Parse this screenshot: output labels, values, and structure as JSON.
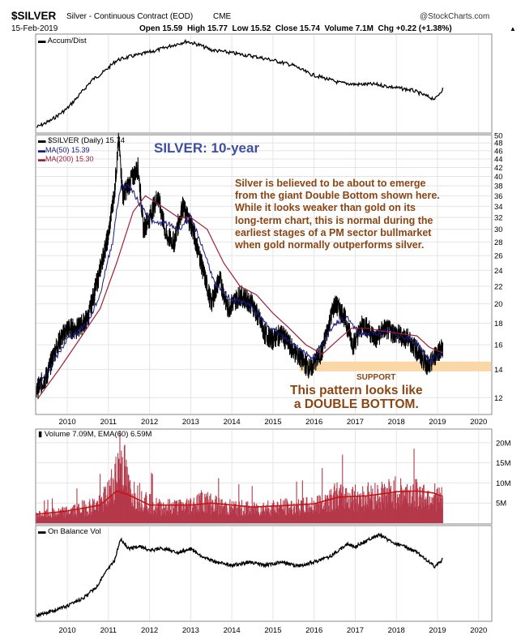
{
  "header": {
    "symbol": "$SILVER",
    "description": "Silver - Continuous Contract (EOD)",
    "exchange": "CME",
    "watermark": "@StockCharts.com",
    "date": "15-Feb-2019",
    "open_label": "Open",
    "open_value": "15.59",
    "high_label": "High",
    "high_value": "15.77",
    "low_label": "Low",
    "low_value": "15.52",
    "close_label": "Close",
    "close_value": "15.74",
    "volume_label": "Volume",
    "volume_value": "7.1M",
    "chg_label": "Chg",
    "chg_value": "+0.22 (+1.38%)"
  },
  "colors": {
    "price": "#000000",
    "ma50": "#1a1a80",
    "ma200": "#a0203a",
    "volume_bar": "#b5394a",
    "volume_ema": "#cc1111",
    "title_blue": "#3f4fa0",
    "annotation_brown": "#8b4513",
    "support_band": "#fbd7a5"
  },
  "chart_data": [
    {
      "type": "line",
      "panel": "accum-dist",
      "legend": [
        "Accum/Dist"
      ],
      "x_range": [
        2009.25,
        2019.13
      ],
      "series": [
        {
          "name": "Accum/Dist",
          "points": [
            [
              2009.25,
              0.0
            ],
            [
              2009.6,
              0.08
            ],
            [
              2010.0,
              0.22
            ],
            [
              2010.3,
              0.38
            ],
            [
              2010.6,
              0.55
            ],
            [
              2010.9,
              0.65
            ],
            [
              2011.2,
              0.78
            ],
            [
              2011.5,
              0.82
            ],
            [
              2011.8,
              0.85
            ],
            [
              2012.2,
              0.9
            ],
            [
              2012.6,
              0.96
            ],
            [
              2012.9,
              1.0
            ],
            [
              2013.2,
              0.96
            ],
            [
              2013.5,
              0.9
            ],
            [
              2013.8,
              0.88
            ],
            [
              2014.2,
              0.85
            ],
            [
              2014.6,
              0.82
            ],
            [
              2015.0,
              0.78
            ],
            [
              2015.5,
              0.72
            ],
            [
              2015.9,
              0.62
            ],
            [
              2016.2,
              0.58
            ],
            [
              2016.6,
              0.52
            ],
            [
              2017.0,
              0.5
            ],
            [
              2017.5,
              0.5
            ],
            [
              2018.0,
              0.46
            ],
            [
              2018.4,
              0.43
            ],
            [
              2018.8,
              0.35
            ],
            [
              2018.95,
              0.33
            ],
            [
              2019.13,
              0.45
            ]
          ]
        }
      ]
    },
    {
      "type": "line",
      "panel": "price",
      "title": "SILVER: 10-year",
      "legend": [
        "$SILVER (Daily) 15.74",
        "MA(50) 15.39",
        "MA(200) 15.30"
      ],
      "x_ticks": [
        "2010",
        "2011",
        "2012",
        "2013",
        "2014",
        "2015",
        "2016",
        "2017",
        "2018",
        "2019",
        "2020"
      ],
      "y_ticks": [
        12,
        14,
        16,
        18,
        20,
        22,
        24,
        26,
        28,
        30,
        32,
        34,
        36,
        38,
        40,
        42,
        44,
        46,
        48,
        50
      ],
      "y_range": [
        11,
        50
      ],
      "scale": "log",
      "series": [
        {
          "name": "$SILVER (Daily)",
          "points": [
            [
              2009.25,
              12.5
            ],
            [
              2009.5,
              13.5
            ],
            [
              2009.75,
              16.0
            ],
            [
              2010.0,
              17.5
            ],
            [
              2010.25,
              17.5
            ],
            [
              2010.5,
              18.5
            ],
            [
              2010.75,
              23.0
            ],
            [
              2011.0,
              29.0
            ],
            [
              2011.15,
              37.0
            ],
            [
              2011.25,
              48.5
            ],
            [
              2011.35,
              36.0
            ],
            [
              2011.6,
              40.0
            ],
            [
              2011.72,
              42.0
            ],
            [
              2011.85,
              30.0
            ],
            [
              2012.0,
              32.0
            ],
            [
              2012.2,
              36.0
            ],
            [
              2012.4,
              29.0
            ],
            [
              2012.6,
              28.0
            ],
            [
              2012.8,
              34.0
            ],
            [
              2013.0,
              31.0
            ],
            [
              2013.3,
              24.0
            ],
            [
              2013.5,
              20.0
            ],
            [
              2013.7,
              23.0
            ],
            [
              2013.9,
              19.5
            ],
            [
              2014.2,
              21.0
            ],
            [
              2014.5,
              20.0
            ],
            [
              2014.8,
              17.0
            ],
            [
              2015.0,
              16.5
            ],
            [
              2015.2,
              17.0
            ],
            [
              2015.5,
              15.5
            ],
            [
              2015.9,
              14.0
            ],
            [
              2016.2,
              15.5
            ],
            [
              2016.5,
              20.0
            ],
            [
              2016.7,
              19.0
            ],
            [
              2016.95,
              16.0
            ],
            [
              2017.2,
              18.0
            ],
            [
              2017.5,
              16.5
            ],
            [
              2017.7,
              17.5
            ],
            [
              2018.0,
              17.0
            ],
            [
              2018.3,
              16.5
            ],
            [
              2018.6,
              15.0
            ],
            [
              2018.8,
              14.2
            ],
            [
              2019.0,
              15.5
            ],
            [
              2019.13,
              15.74
            ]
          ]
        },
        {
          "name": "MA(50)",
          "points": [
            [
              2009.3,
              12.7
            ],
            [
              2009.75,
              15.0
            ],
            [
              2010.0,
              16.5
            ],
            [
              2010.5,
              18.0
            ],
            [
              2010.8,
              21.0
            ],
            [
              2011.1,
              28.0
            ],
            [
              2011.3,
              38.0
            ],
            [
              2011.5,
              38.0
            ],
            [
              2011.8,
              34.0
            ],
            [
              2012.1,
              31.0
            ],
            [
              2012.4,
              31.0
            ],
            [
              2012.7,
              30.0
            ],
            [
              2013.0,
              32.0
            ],
            [
              2013.3,
              27.0
            ],
            [
              2013.6,
              22.0
            ],
            [
              2014.0,
              20.5
            ],
            [
              2014.4,
              20.0
            ],
            [
              2014.8,
              18.0
            ],
            [
              2015.2,
              16.8
            ],
            [
              2015.6,
              15.8
            ],
            [
              2016.0,
              14.8
            ],
            [
              2016.5,
              18.0
            ],
            [
              2016.8,
              18.5
            ],
            [
              2017.1,
              17.0
            ],
            [
              2017.5,
              17.0
            ],
            [
              2017.8,
              17.2
            ],
            [
              2018.1,
              16.8
            ],
            [
              2018.5,
              16.2
            ],
            [
              2018.8,
              14.6
            ],
            [
              2019.13,
              15.39
            ]
          ]
        },
        {
          "name": "MA(200)",
          "points": [
            [
              2009.3,
              12.0
            ],
            [
              2009.8,
              14.0
            ],
            [
              2010.3,
              16.5
            ],
            [
              2010.8,
              19.5
            ],
            [
              2011.2,
              25.0
            ],
            [
              2011.6,
              33.0
            ],
            [
              2011.9,
              36.0
            ],
            [
              2012.3,
              34.0
            ],
            [
              2012.7,
              32.0
            ],
            [
              2013.0,
              32.0
            ],
            [
              2013.4,
              30.0
            ],
            [
              2013.8,
              25.0
            ],
            [
              2014.2,
              22.0
            ],
            [
              2014.6,
              21.0
            ],
            [
              2015.0,
              19.0
            ],
            [
              2015.4,
              17.5
            ],
            [
              2015.8,
              16.0
            ],
            [
              2016.2,
              15.2
            ],
            [
              2016.6,
              16.5
            ],
            [
              2016.9,
              17.5
            ],
            [
              2017.3,
              17.5
            ],
            [
              2017.7,
              17.2
            ],
            [
              2018.1,
              17.0
            ],
            [
              2018.5,
              16.8
            ],
            [
              2018.8,
              15.8
            ],
            [
              2019.13,
              15.3
            ]
          ]
        }
      ],
      "annotations": [
        {
          "text": "Silver is believed to be about to emerge\nfrom the giant Double Bottom shown here.\nWhile it looks weaker than gold on its\nlong-term chart, this is normal during the\nearliest stages of a PM sector bullmarket\nwhen gold normally outperforms silver."
        },
        {
          "text": "SUPPORT",
          "band": [
            13.85,
            14.6
          ]
        },
        {
          "text": "This pattern looks like\na DOUBLE BOTTOM."
        }
      ]
    },
    {
      "type": "bar",
      "panel": "volume",
      "legend": [
        "Volume 7.09M, EMA(60) 6.59M"
      ],
      "y_ticks": [
        "5M",
        "10M",
        "15M",
        "20M"
      ],
      "y_range": [
        0,
        23
      ],
      "unit": "M",
      "series": [
        {
          "name": "Volume",
          "points": [
            [
              2009.25,
              2.5
            ],
            [
              2010.0,
              3.5
            ],
            [
              2010.8,
              6.0
            ],
            [
              2011.0,
              9.0
            ],
            [
              2011.15,
              14.0
            ],
            [
              2011.3,
              22.0
            ],
            [
              2011.5,
              10.0
            ],
            [
              2011.8,
              8.0
            ],
            [
              2012.2,
              5.0
            ],
            [
              2012.8,
              5.0
            ],
            [
              2013.3,
              7.0
            ],
            [
              2013.8,
              5.0
            ],
            [
              2014.5,
              4.5
            ],
            [
              2015.0,
              5.0
            ],
            [
              2015.5,
              5.0
            ],
            [
              2016.0,
              5.5
            ],
            [
              2016.5,
              8.5
            ],
            [
              2017.0,
              8.0
            ],
            [
              2017.5,
              8.5
            ],
            [
              2018.0,
              9.5
            ],
            [
              2018.5,
              9.0
            ],
            [
              2018.9,
              8.5
            ],
            [
              2019.13,
              7.09
            ]
          ]
        },
        {
          "name": "EMA(60)",
          "points": [
            [
              2009.25,
              2.2
            ],
            [
              2010.0,
              3.0
            ],
            [
              2010.8,
              4.5
            ],
            [
              2011.2,
              8.0
            ],
            [
              2011.5,
              7.0
            ],
            [
              2012.0,
              4.5
            ],
            [
              2013.0,
              4.5
            ],
            [
              2013.5,
              5.0
            ],
            [
              2014.5,
              4.0
            ],
            [
              2015.5,
              4.5
            ],
            [
              2016.0,
              4.8
            ],
            [
              2016.6,
              6.5
            ],
            [
              2017.3,
              6.8
            ],
            [
              2018.0,
              7.8
            ],
            [
              2018.5,
              8.0
            ],
            [
              2018.9,
              7.5
            ],
            [
              2019.13,
              6.59
            ]
          ]
        }
      ]
    },
    {
      "type": "line",
      "panel": "on-balance-volume",
      "legend": [
        "On Balance Vol"
      ],
      "x_ticks": [
        "2010",
        "2011",
        "2012",
        "2013",
        "2014",
        "2015",
        "2016",
        "2017",
        "2018",
        "2019",
        "2020"
      ],
      "series": [
        {
          "name": "On Balance Vol",
          "points": [
            [
              2009.25,
              0.0
            ],
            [
              2009.6,
              0.05
            ],
            [
              2010.0,
              0.12
            ],
            [
              2010.4,
              0.22
            ],
            [
              2010.7,
              0.35
            ],
            [
              2010.95,
              0.55
            ],
            [
              2011.15,
              0.68
            ],
            [
              2011.3,
              0.95
            ],
            [
              2011.5,
              0.82
            ],
            [
              2011.75,
              0.86
            ],
            [
              2012.0,
              0.8
            ],
            [
              2012.3,
              0.83
            ],
            [
              2012.7,
              0.78
            ],
            [
              2013.0,
              0.82
            ],
            [
              2013.3,
              0.72
            ],
            [
              2013.6,
              0.66
            ],
            [
              2014.0,
              0.62
            ],
            [
              2014.4,
              0.66
            ],
            [
              2014.8,
              0.62
            ],
            [
              2015.2,
              0.66
            ],
            [
              2015.6,
              0.61
            ],
            [
              2016.0,
              0.66
            ],
            [
              2016.4,
              0.73
            ],
            [
              2016.8,
              0.88
            ],
            [
              2017.0,
              0.85
            ],
            [
              2017.3,
              0.93
            ],
            [
              2017.6,
              1.0
            ],
            [
              2017.9,
              0.9
            ],
            [
              2018.2,
              0.85
            ],
            [
              2018.5,
              0.78
            ],
            [
              2018.8,
              0.66
            ],
            [
              2018.95,
              0.6
            ],
            [
              2019.13,
              0.7
            ]
          ]
        }
      ]
    }
  ]
}
